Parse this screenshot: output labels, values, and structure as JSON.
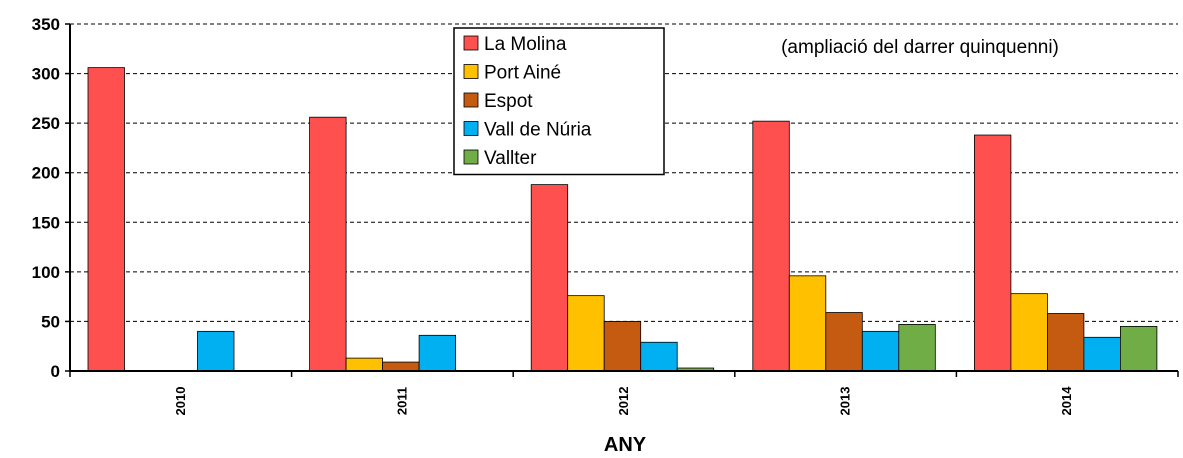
{
  "chart_data": {
    "type": "bar",
    "xlabel": "ANY",
    "ylabel": "",
    "annotation": "(ampliació del darrer quinquenni)",
    "ylim": [
      0,
      350
    ],
    "yticks": [
      0,
      50,
      100,
      150,
      200,
      250,
      300,
      350
    ],
    "grid": "horizontal dashed",
    "legend_position": "top-center",
    "categories": [
      "2010",
      "2011",
      "2012",
      "2013",
      "2014"
    ],
    "series": [
      {
        "name": "La Molina",
        "color": "#ff5050",
        "values": [
          306,
          256,
          188,
          252,
          238
        ]
      },
      {
        "name": "Port Ainé",
        "color": "#ffc000",
        "values": [
          0,
          13,
          76,
          96,
          78
        ]
      },
      {
        "name": "Espot",
        "color": "#c55a11",
        "values": [
          0,
          9,
          50,
          59,
          58
        ]
      },
      {
        "name": "Vall de Núria",
        "color": "#00b0f0",
        "values": [
          40,
          36,
          29,
          40,
          34
        ]
      },
      {
        "name": "Vallter",
        "color": "#70ad47",
        "values": [
          0,
          0,
          3,
          47,
          45
        ]
      }
    ]
  }
}
